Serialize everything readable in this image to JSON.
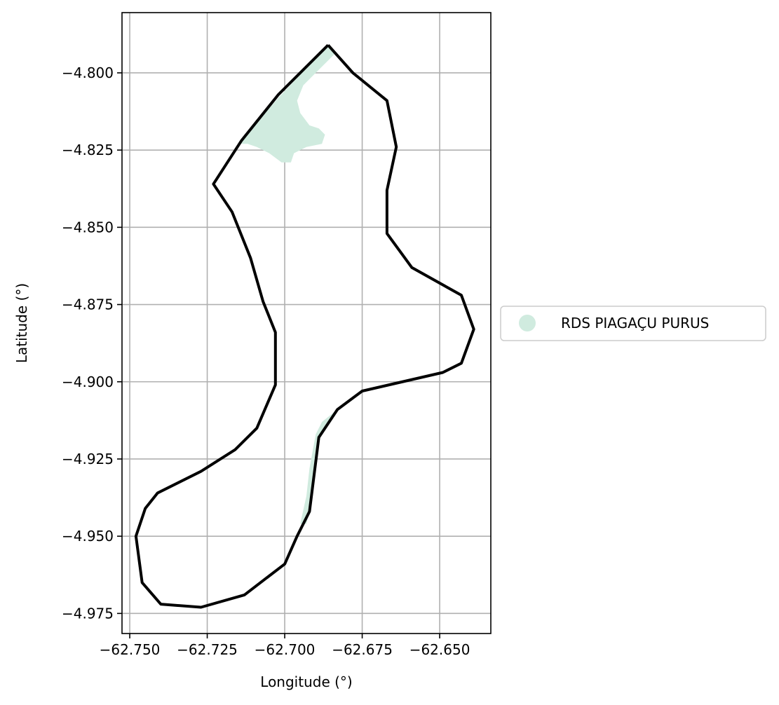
{
  "chart_data": {
    "type": "map",
    "title": "",
    "xlabel": "Longitude (°)",
    "ylabel": "Latitude (°)",
    "xlim": [
      -62.7525,
      -62.6335
    ],
    "ylim": [
      -4.9815,
      -4.7805
    ],
    "grid": true,
    "x_ticks": [
      -62.75,
      -62.725,
      -62.7,
      -62.675,
      -62.65
    ],
    "x_tick_labels": [
      "−62.750",
      "−62.725",
      "−62.700",
      "−62.675",
      "−62.650"
    ],
    "y_ticks": [
      -4.8,
      -4.825,
      -4.85,
      -4.875,
      -4.9,
      -4.925,
      -4.95,
      -4.975
    ],
    "y_tick_labels": [
      "−4.800",
      "−4.825",
      "−4.850",
      "−4.875",
      "−4.900",
      "−4.925",
      "−4.950",
      "−4.975"
    ],
    "legend": {
      "placement": "center-right outside",
      "entries": [
        {
          "label": "RDS PIAGAÇU PURUS",
          "color": "#d0ebdf",
          "marker": "circle"
        }
      ]
    },
    "series": [
      {
        "name": "RDS PIAGAÇU PURUS",
        "kind": "filled-polygon",
        "color": "#d0ebdf",
        "parts": [
          [
            [
              -62.686,
              -4.791
            ],
            [
              -62.684,
              -4.794
            ],
            [
              -62.689,
              -4.799
            ],
            [
              -62.694,
              -4.804
            ],
            [
              -62.696,
              -4.809
            ],
            [
              -62.695,
              -4.813
            ],
            [
              -62.692,
              -4.817
            ],
            [
              -62.689,
              -4.818
            ],
            [
              -62.687,
              -4.82
            ],
            [
              -62.688,
              -4.823
            ],
            [
              -62.693,
              -4.824
            ],
            [
              -62.697,
              -4.826
            ],
            [
              -62.698,
              -4.829
            ],
            [
              -62.701,
              -4.829
            ],
            [
              -62.705,
              -4.826
            ],
            [
              -62.709,
              -4.824
            ],
            [
              -62.712,
              -4.823
            ],
            [
              -62.715,
              -4.823
            ],
            [
              -62.702,
              -4.808
            ]
          ],
          [
            [
              -62.683,
              -4.909
            ],
            [
              -62.688,
              -4.913
            ],
            [
              -62.69,
              -4.917
            ],
            [
              -62.692,
              -4.928
            ],
            [
              -62.693,
              -4.937
            ],
            [
              -62.695,
              -4.946
            ],
            [
              -62.693,
              -4.946
            ],
            [
              -62.692,
              -4.942
            ],
            [
              -62.689,
              -4.918
            ]
          ]
        ]
      },
      {
        "name": "",
        "kind": "outline",
        "color": "#000000",
        "coordinates": [
          [
            -62.686,
            -4.791
          ],
          [
            -62.678,
            -4.8
          ],
          [
            -62.667,
            -4.809
          ],
          [
            -62.664,
            -4.824
          ],
          [
            -62.667,
            -4.838
          ],
          [
            -62.667,
            -4.852
          ],
          [
            -62.659,
            -4.863
          ],
          [
            -62.643,
            -4.872
          ],
          [
            -62.639,
            -4.883
          ],
          [
            -62.643,
            -4.894
          ],
          [
            -62.649,
            -4.897
          ],
          [
            -62.675,
            -4.903
          ],
          [
            -62.683,
            -4.909
          ],
          [
            -62.689,
            -4.918
          ],
          [
            -62.692,
            -4.942
          ],
          [
            -62.696,
            -4.95
          ],
          [
            -62.7,
            -4.959
          ],
          [
            -62.713,
            -4.969
          ],
          [
            -62.727,
            -4.973
          ],
          [
            -62.74,
            -4.972
          ],
          [
            -62.746,
            -4.965
          ],
          [
            -62.748,
            -4.95
          ],
          [
            -62.745,
            -4.941
          ],
          [
            -62.741,
            -4.936
          ],
          [
            -62.727,
            -4.929
          ],
          [
            -62.716,
            -4.922
          ],
          [
            -62.709,
            -4.915
          ],
          [
            -62.703,
            -4.901
          ],
          [
            -62.703,
            -4.884
          ],
          [
            -62.707,
            -4.874
          ],
          [
            -62.711,
            -4.86
          ],
          [
            -62.717,
            -4.845
          ],
          [
            -62.723,
            -4.836
          ],
          [
            -62.714,
            -4.822
          ],
          [
            -62.702,
            -4.807
          ],
          [
            -62.686,
            -4.791
          ]
        ]
      }
    ]
  }
}
